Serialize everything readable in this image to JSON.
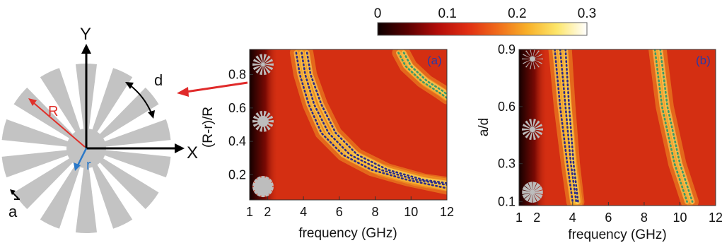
{
  "diagram": {
    "axis_y_label": "Y",
    "axis_x_label": "X",
    "radius_outer_label": "R",
    "radius_inner_label": "r",
    "pitch_label": "d",
    "gap_label": "a",
    "petal_count": 14,
    "colors": {
      "petal": "#c3c3c3",
      "axis": "#000000",
      "radius_outer": "#e0302a",
      "radius_inner": "#2a78c8",
      "pointer": "#e02a2a"
    }
  },
  "colorbar": {
    "ticks": [
      "0",
      "0.1",
      "0.2",
      "0.3"
    ],
    "range": [
      0,
      0.3
    ],
    "colormap": "hot",
    "stops": [
      "#0c0000",
      "#5a0000",
      "#b30c08",
      "#e02d12",
      "#f06a1a",
      "#f8b028",
      "#fde66a",
      "#ffffff"
    ]
  },
  "chart_data": [
    {
      "type": "heatmap",
      "panel_label": "(a)",
      "xlabel": "frequency (GHz)",
      "ylabel": "(R-r)/R",
      "xlim": [
        1,
        12
      ],
      "ylim": [
        0.05,
        0.95
      ],
      "xticks": [
        1,
        2,
        4,
        6,
        8,
        10,
        12
      ],
      "yticks": [
        0.2,
        0.4,
        0.6,
        0.8
      ],
      "ytick_labels": [
        "0.2",
        "0.4",
        "0.6",
        "0.8"
      ],
      "xtick_labels": [
        "1",
        "2",
        "4",
        "6",
        "8",
        "10",
        "12"
      ],
      "series": [
        {
          "color": "#2a2a8a",
          "x": [
            3.6,
            3.8,
            4.3,
            5.0,
            6.2,
            7.8,
            9.8,
            12.0
          ],
          "y": [
            0.93,
            0.8,
            0.62,
            0.45,
            0.32,
            0.23,
            0.17,
            0.12
          ]
        },
        {
          "color": "#2a2a8a",
          "x": [
            3.9,
            4.1,
            4.6,
            5.4,
            6.6,
            8.3,
            10.3,
            12.0
          ],
          "y": [
            0.93,
            0.8,
            0.62,
            0.45,
            0.32,
            0.23,
            0.17,
            0.14
          ]
        },
        {
          "color": "#2a2a8a",
          "x": [
            4.2,
            4.4,
            5.0,
            5.8,
            7.0,
            8.7,
            10.7,
            12.0
          ],
          "y": [
            0.93,
            0.8,
            0.62,
            0.45,
            0.32,
            0.23,
            0.17,
            0.15
          ]
        },
        {
          "color": "#3a9a6a",
          "x": [
            9.3,
            9.7,
            10.6,
            11.6,
            12.0
          ],
          "y": [
            0.93,
            0.85,
            0.76,
            0.69,
            0.66
          ]
        },
        {
          "color": "#3a9a6a",
          "x": [
            9.6,
            10.0,
            10.9,
            11.8,
            12.0
          ],
          "y": [
            0.93,
            0.85,
            0.76,
            0.7,
            0.68
          ]
        }
      ]
    },
    {
      "type": "heatmap",
      "panel_label": "(b)",
      "xlabel": "frequency (GHz)",
      "ylabel": "a/d",
      "xlim": [
        1,
        12
      ],
      "ylim": [
        0.08,
        0.9
      ],
      "xticks": [
        1,
        2,
        4,
        6,
        8,
        10,
        12
      ],
      "yticks": [
        0.1,
        0.3,
        0.6,
        0.9
      ],
      "ytick_labels": [
        "0.1",
        "0.3",
        "0.6",
        "0.9"
      ],
      "xtick_labels": [
        "1",
        "2",
        "4",
        "6",
        "8",
        "10",
        "12"
      ],
      "series": [
        {
          "color": "#2a2a8a",
          "x": [
            3.0,
            3.3,
            3.7,
            4.0
          ],
          "y": [
            0.9,
            0.6,
            0.3,
            0.1
          ]
        },
        {
          "color": "#2a2a8a",
          "x": [
            3.3,
            3.6,
            3.9,
            4.2
          ],
          "y": [
            0.9,
            0.6,
            0.3,
            0.1
          ]
        },
        {
          "color": "#2a2a8a",
          "x": [
            3.6,
            3.8,
            4.05,
            4.3
          ],
          "y": [
            0.9,
            0.6,
            0.3,
            0.1
          ]
        },
        {
          "color": "#3a9a6a",
          "x": [
            8.6,
            9.0,
            9.7,
            10.4
          ],
          "y": [
            0.9,
            0.6,
            0.3,
            0.1
          ]
        },
        {
          "color": "#3a9a6a",
          "x": [
            8.9,
            9.3,
            10.0,
            10.7
          ],
          "y": [
            0.9,
            0.6,
            0.3,
            0.1
          ]
        }
      ]
    }
  ]
}
